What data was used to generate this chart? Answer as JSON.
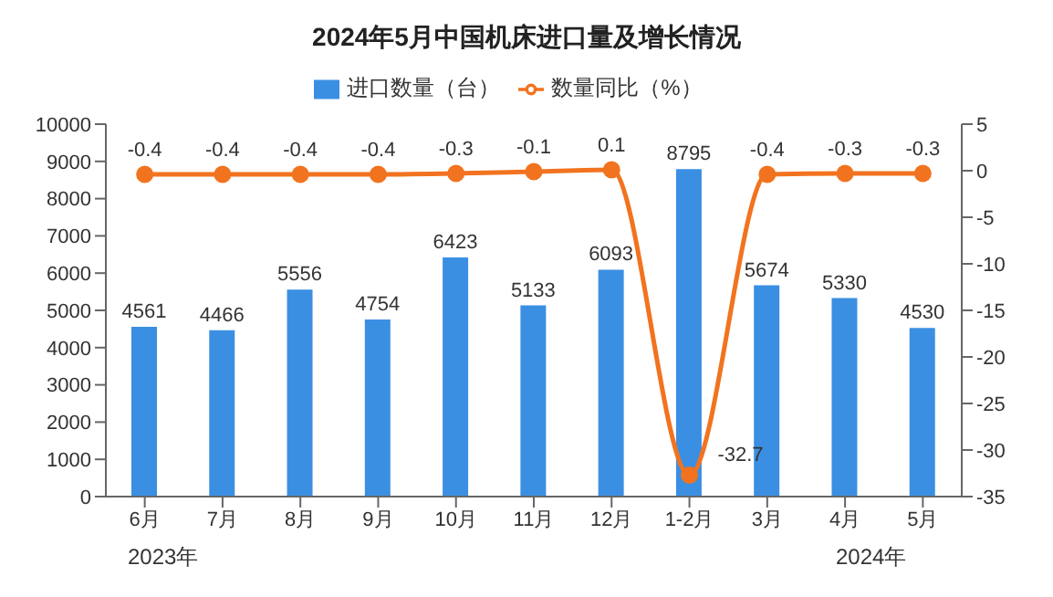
{
  "chart_data": {
    "type": "bar",
    "title": "2024年5月中国机床进口量及增长情况",
    "categories": [
      "6月",
      "7月",
      "8月",
      "9月",
      "10月",
      "11月",
      "12月",
      "1-2月",
      "3月",
      "4月",
      "5月"
    ],
    "series": [
      {
        "name": "进口数量（台）",
        "color": "#3b8fe3",
        "values": [
          4561,
          4466,
          5556,
          4754,
          6423,
          5133,
          6093,
          8795,
          5674,
          5330,
          4530
        ]
      },
      {
        "name": "数量同比（%）",
        "type": "line",
        "axis": "y2",
        "color": "#f2731f",
        "values": [
          -0.4,
          -0.4,
          -0.4,
          -0.4,
          -0.3,
          -0.1,
          0.1,
          -32.7,
          -0.4,
          -0.3,
          -0.3
        ]
      }
    ],
    "ylim": [
      0,
      10000
    ],
    "yticks": [
      0,
      1000,
      2000,
      3000,
      4000,
      5000,
      6000,
      7000,
      8000,
      9000,
      10000
    ],
    "y2lim": [
      -35,
      5
    ],
    "y2ticks": [
      -35,
      -30,
      -25,
      -20,
      -15,
      -10,
      -5,
      0,
      5
    ],
    "legend": "top",
    "marker": "circle",
    "data_labels": true,
    "annotations": [
      "2023年",
      "2024年"
    ]
  }
}
